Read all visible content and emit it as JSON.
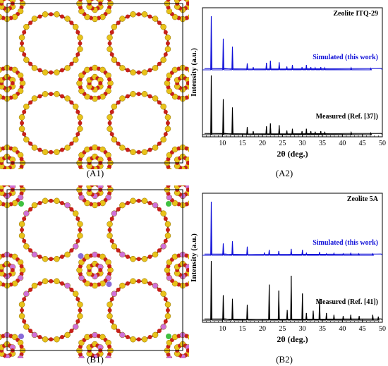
{
  "panels": {
    "a1": {
      "label": "(A1)"
    },
    "a2": {
      "label": "(A2)"
    },
    "b1": {
      "label": "(B1)"
    },
    "b2": {
      "label": "(B2)"
    }
  },
  "colors": {
    "simulated": "#1010d8",
    "measured": "#000000",
    "si_atom": "#e8c21a",
    "o_atom": "#c8201a",
    "al_atom": "#d070d8",
    "ca_atom": "#40c040",
    "na_atom": "#8a6ad8",
    "bond": "#8a3a10"
  },
  "chart_data": [
    {
      "type": "line",
      "panel": "A2",
      "title": "Zeolite ITQ-29",
      "xlabel": "2θ (deg.)",
      "ylabel": "Intensity (a.u.)",
      "xlim": [
        5,
        50
      ],
      "x_ticks": [
        10,
        15,
        20,
        25,
        30,
        35,
        40,
        45,
        50
      ],
      "y_ticks": "none",
      "grid": false,
      "series": [
        {
          "name": "Simulated (this work)",
          "peaks": [
            [
              7.2,
              100
            ],
            [
              10.2,
              58
            ],
            [
              12.5,
              43
            ],
            [
              16.2,
              12
            ],
            [
              17.7,
              5
            ],
            [
              21.0,
              13
            ],
            [
              22.0,
              17
            ],
            [
              24.2,
              14
            ],
            [
              26.1,
              6
            ],
            [
              27.5,
              9
            ],
            [
              29.9,
              5
            ],
            [
              31.0,
              9
            ],
            [
              32.1,
              5
            ],
            [
              33.2,
              4
            ],
            [
              34.6,
              5
            ],
            [
              35.6,
              4
            ],
            [
              42.2,
              4
            ],
            [
              47.1,
              3
            ]
          ]
        },
        {
          "name": "Measured (Ref. [37])",
          "peaks": [
            [
              7.2,
              100
            ],
            [
              10.2,
              60
            ],
            [
              12.5,
              46
            ],
            [
              16.2,
              13
            ],
            [
              17.7,
              6
            ],
            [
              21.0,
              14
            ],
            [
              22.0,
              19
            ],
            [
              24.2,
              16
            ],
            [
              26.1,
              7
            ],
            [
              27.5,
              10
            ],
            [
              29.9,
              6
            ],
            [
              31.0,
              10
            ],
            [
              32.1,
              6
            ],
            [
              33.2,
              5
            ],
            [
              34.6,
              6
            ],
            [
              35.6,
              5
            ],
            [
              42.2,
              4
            ],
            [
              47.1,
              3
            ]
          ]
        }
      ]
    },
    {
      "type": "line",
      "panel": "B2",
      "title": "Zeolite 5A",
      "xlabel": "2θ (deg.)",
      "ylabel": "Intensity (a.u.)",
      "xlim": [
        5,
        50
      ],
      "x_ticks": [
        10,
        15,
        20,
        25,
        30,
        35,
        40,
        45,
        50
      ],
      "y_ticks": "none",
      "grid": false,
      "series": [
        {
          "name": "Simulated (this work)",
          "peaks": [
            [
              7.2,
              100
            ],
            [
              10.2,
              22
            ],
            [
              12.5,
              26
            ],
            [
              16.2,
              16
            ],
            [
              20.5,
              5
            ],
            [
              21.7,
              10
            ],
            [
              24.1,
              8
            ],
            [
              27.2,
              12
            ],
            [
              30.0,
              10
            ],
            [
              31.0,
              4
            ],
            [
              34.3,
              6
            ],
            [
              36.0,
              3
            ],
            [
              37.9,
              4
            ],
            [
              40.2,
              3
            ],
            [
              42.1,
              4
            ],
            [
              44.1,
              3
            ],
            [
              47.6,
              3
            ]
          ]
        },
        {
          "name": "Measured (Ref. [41])",
          "peaks": [
            [
              7.2,
              100
            ],
            [
              10.2,
              42
            ],
            [
              12.5,
              36
            ],
            [
              16.2,
              26
            ],
            [
              21.7,
              60
            ],
            [
              24.1,
              50
            ],
            [
              26.2,
              17
            ],
            [
              27.2,
              75
            ],
            [
              30.0,
              45
            ],
            [
              31.0,
              12
            ],
            [
              32.7,
              16
            ],
            [
              34.3,
              36
            ],
            [
              36.0,
              12
            ],
            [
              37.9,
              9
            ],
            [
              40.2,
              7
            ],
            [
              42.1,
              9
            ],
            [
              44.2,
              7
            ],
            [
              47.6,
              9
            ],
            [
              49.0,
              6
            ]
          ]
        }
      ]
    }
  ]
}
